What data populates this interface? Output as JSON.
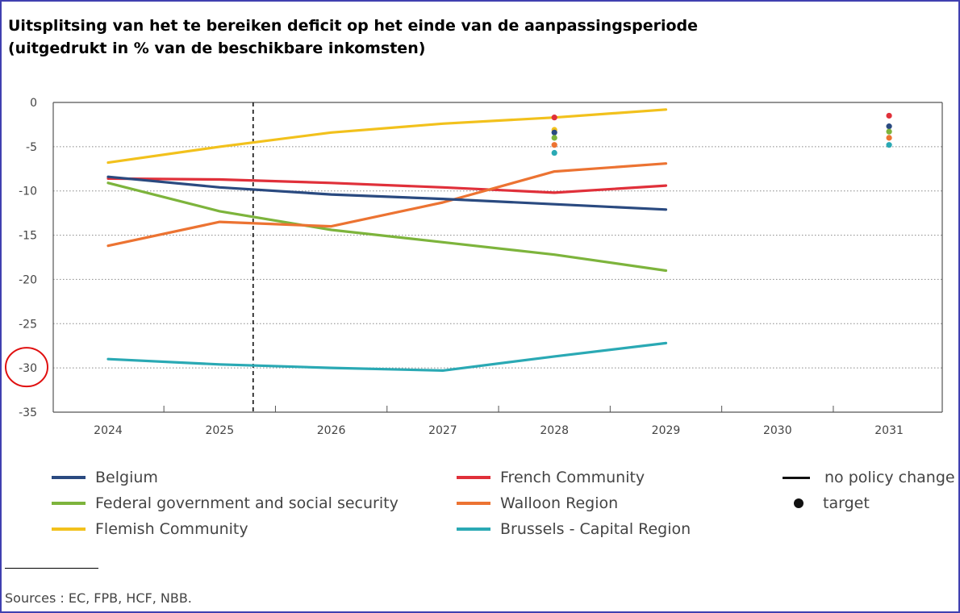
{
  "title_line1": "Uitsplitsing van het te bereiken deficit op het einde van de aanpassingsperiode",
  "title_line2": "(uitgedrukt in % van de beschikbare inkomsten)",
  "chart_data": {
    "type": "line",
    "title": "Uitsplitsing van het te bereiken deficit op het einde van de aanpassingsperiode (uitgedrukt in % van de beschikbare inkomsten)",
    "x": [
      2024,
      2025,
      2026,
      2027,
      2028,
      2029
    ],
    "categories": [
      "2024",
      "2025",
      "2026",
      "2027",
      "2028",
      "2029",
      "2030",
      "2031"
    ],
    "ylim": [
      -35,
      0
    ],
    "yticks": [
      0,
      -5,
      -10,
      -15,
      -20,
      -25,
      -30,
      -35
    ],
    "ytick_labels": [
      "0",
      "-5",
      "-10",
      "-15",
      "-20",
      "-25",
      "-30",
      "-35"
    ],
    "grid": "horizontal dotted",
    "vline_x": 2025.3,
    "annotation": "circle around -30",
    "series": [
      {
        "name": "Belgium",
        "color": "#2a4a80",
        "values": [
          -8.4,
          -9.6,
          -10.4,
          -10.9,
          -11.5,
          -12.1
        ]
      },
      {
        "name": "Federal government and social security",
        "color": "#7db43c",
        "values": [
          -9.1,
          -12.3,
          -14.4,
          -15.8,
          -17.2,
          -19.0
        ]
      },
      {
        "name": "Flemish Community",
        "color": "#f2c11c",
        "values": [
          -6.8,
          -5.0,
          -3.4,
          -2.4,
          -1.7,
          -0.8
        ]
      },
      {
        "name": "French Community",
        "color": "#e0303a",
        "values": [
          -8.6,
          -8.7,
          -9.1,
          -9.6,
          -10.2,
          -9.4
        ]
      },
      {
        "name": "Walloon Region",
        "color": "#ec7332",
        "values": [
          -16.2,
          -13.5,
          -14.0,
          -11.3,
          -7.8,
          -6.9
        ]
      },
      {
        "name": "Brussels - Capital Region",
        "color": "#2aa9b4",
        "values": [
          -29.0,
          -29.6,
          -30.0,
          -30.3,
          -28.7,
          -27.2
        ]
      }
    ],
    "targets": [
      {
        "x": 2028,
        "values": [
          {
            "series": "French Community",
            "value": -1.7
          },
          {
            "series": "Flemish Community",
            "value": -3.1
          },
          {
            "series": "Belgium",
            "value": -3.4
          },
          {
            "series": "Federal government and social security",
            "value": -4.0
          },
          {
            "series": "Walloon Region",
            "value": -4.8
          },
          {
            "series": "Brussels - Capital Region",
            "value": -5.7
          }
        ]
      },
      {
        "x": 2031,
        "values": [
          {
            "series": "French Community",
            "value": -1.5
          },
          {
            "series": "Belgium",
            "value": -2.7
          },
          {
            "series": "Federal government and social security",
            "value": -3.3
          },
          {
            "series": "Walloon Region",
            "value": -4.0
          },
          {
            "series": "Brussels - Capital Region",
            "value": -4.8
          }
        ]
      }
    ]
  },
  "legend": {
    "belgium": "Belgium",
    "federal": "Federal government and social security",
    "flemish": "Flemish Community",
    "french": "French Community",
    "walloon": "Walloon Region",
    "brussels": "Brussels - Capital Region",
    "no_policy": "no policy change",
    "target": "target"
  },
  "colors": {
    "belgium": "#2a4a80",
    "federal": "#7db43c",
    "flemish": "#f2c11c",
    "french": "#e0303a",
    "walloon": "#ec7332",
    "brussels": "#2aa9b4"
  },
  "source": "Sources : EC, FPB, HCF, NBB."
}
